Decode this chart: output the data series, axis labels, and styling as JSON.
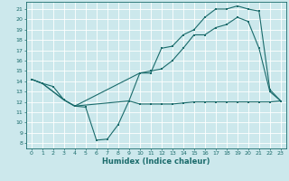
{
  "title": "",
  "xlabel": "Humidex (Indice chaleur)",
  "bg_color": "#cce8ec",
  "grid_color": "#ffffff",
  "line_color": "#1a6b6b",
  "xlim": [
    -0.5,
    23.5
  ],
  "ylim": [
    7.5,
    21.7
  ],
  "xticks": [
    0,
    1,
    2,
    3,
    4,
    5,
    6,
    7,
    8,
    9,
    10,
    11,
    12,
    13,
    14,
    15,
    16,
    17,
    18,
    19,
    20,
    21,
    22,
    23
  ],
  "yticks": [
    8,
    9,
    10,
    11,
    12,
    13,
    14,
    15,
    16,
    17,
    18,
    19,
    20,
    21
  ],
  "line1_x": [
    0,
    1,
    2,
    3,
    4,
    5,
    6,
    7,
    8,
    9,
    10,
    11,
    12,
    13,
    14,
    15,
    16,
    17,
    18,
    19,
    20,
    21,
    22,
    23
  ],
  "line1_y": [
    14.2,
    13.8,
    13.5,
    12.2,
    11.6,
    11.5,
    8.3,
    8.4,
    9.8,
    12.1,
    11.8,
    11.8,
    11.8,
    11.8,
    11.9,
    12.0,
    12.0,
    12.0,
    12.0,
    12.0,
    12.0,
    12.0,
    12.0,
    12.1
  ],
  "line2_x": [
    0,
    1,
    3,
    4,
    9,
    10,
    11,
    12,
    13,
    14,
    15,
    16,
    17,
    18,
    19,
    20,
    21,
    22,
    23
  ],
  "line2_y": [
    14.2,
    13.8,
    12.2,
    11.6,
    12.1,
    14.8,
    15.0,
    15.2,
    16.0,
    17.2,
    18.5,
    18.5,
    19.2,
    19.5,
    20.2,
    19.8,
    17.2,
    13.0,
    12.1
  ],
  "line3_x": [
    0,
    1,
    3,
    4,
    10,
    11,
    12,
    13,
    14,
    15,
    16,
    17,
    18,
    19,
    20,
    21,
    22,
    23
  ],
  "line3_y": [
    14.2,
    13.8,
    12.2,
    11.6,
    14.8,
    14.8,
    17.2,
    17.4,
    18.5,
    19.0,
    20.2,
    21.0,
    21.0,
    21.3,
    21.0,
    20.8,
    13.2,
    12.1
  ]
}
